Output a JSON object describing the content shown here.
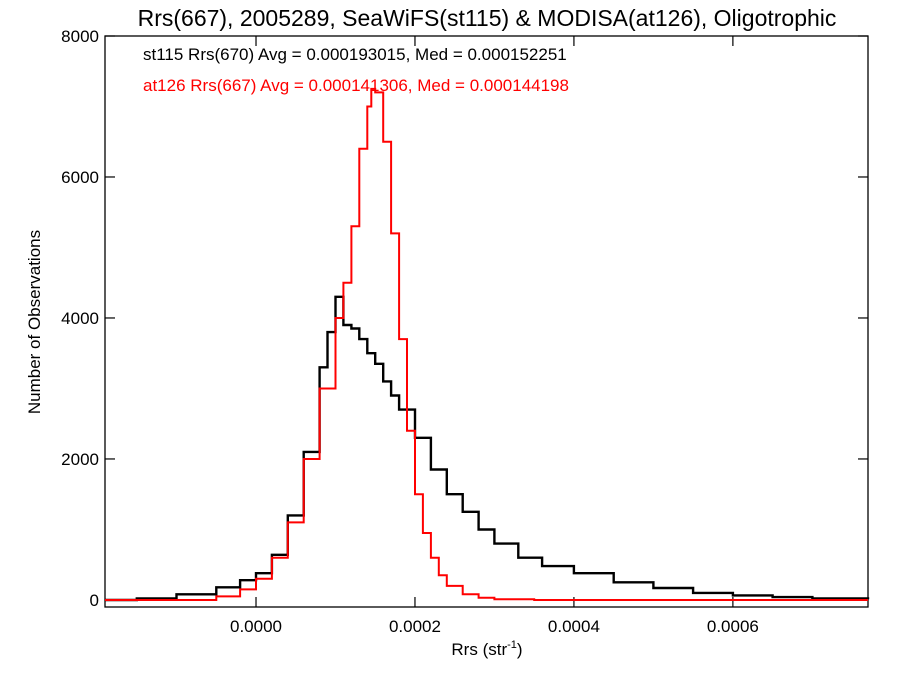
{
  "chart_data": {
    "type": "line",
    "title": "Rrs(667), 2005289, SeaWiFS(st115) & MODISA(at126), Oligotrophic",
    "xlabel": "Rrs (str",
    "xlabel_sup": "-1",
    "xlabel_close": ")",
    "ylabel": "Number of Observations",
    "xlim": [
      -0.00019,
      0.00077
    ],
    "ylim": [
      -100,
      8000
    ],
    "x_ticks": [
      0.0,
      0.0002,
      0.0004,
      0.0006
    ],
    "x_tick_labels": [
      "0.0000",
      "0.0002",
      "0.0004",
      "0.0006"
    ],
    "y_ticks": [
      0,
      2000,
      4000,
      6000,
      8000
    ],
    "y_tick_labels": [
      "0",
      "2000",
      "4000",
      "6000",
      "8000"
    ],
    "grid": false,
    "legend_position": "top-left",
    "annotations": [
      {
        "text": "st115 Rrs(670) Avg = 0.000193015, Med = 0.000152251",
        "color": "#000000"
      },
      {
        "text": "at126 Rrs(667) Avg = 0.000141306, Med = 0.000144198",
        "color": "#ff0000"
      }
    ],
    "series": [
      {
        "color": "#000000",
        "x": [
          -0.00019,
          -0.00015,
          -0.0001,
          -5e-05,
          -2e-05,
          0.0,
          2e-05,
          4e-05,
          6e-05,
          8e-05,
          9e-05,
          0.0001,
          0.00011,
          0.00012,
          0.00013,
          0.00014,
          0.00015,
          0.00016,
          0.00017,
          0.00018,
          0.0002,
          0.00022,
          0.00024,
          0.00026,
          0.00028,
          0.0003,
          0.00033,
          0.00036,
          0.0004,
          0.00045,
          0.0005,
          0.00055,
          0.0006,
          0.00065,
          0.0007,
          0.00077
        ],
        "values": [
          0,
          20,
          80,
          180,
          280,
          380,
          640,
          1200,
          2100,
          3300,
          3800,
          4300,
          3900,
          3850,
          3700,
          3500,
          3350,
          3100,
          2900,
          2700,
          2300,
          1850,
          1500,
          1250,
          1000,
          800,
          600,
          480,
          380,
          250,
          170,
          100,
          65,
          40,
          20,
          10
        ]
      },
      {
        "color": "#ff0000",
        "x": [
          -0.00019,
          -8e-05,
          -5e-05,
          -2e-05,
          0.0,
          2e-05,
          4e-05,
          6e-05,
          8e-05,
          0.0001,
          0.00011,
          0.00012,
          0.00013,
          0.00014,
          0.000145,
          0.00015,
          0.00016,
          0.00017,
          0.00018,
          0.00019,
          0.0002,
          0.00021,
          0.00022,
          0.00023,
          0.00024,
          0.00026,
          0.00028,
          0.0003,
          0.00035,
          0.0004,
          0.00077
        ],
        "values": [
          0,
          0,
          50,
          150,
          300,
          600,
          1100,
          2000,
          3000,
          4000,
          4500,
          5300,
          6400,
          7000,
          7250,
          7200,
          6500,
          5200,
          3700,
          2400,
          1500,
          950,
          600,
          350,
          200,
          80,
          30,
          10,
          0,
          0,
          0
        ]
      }
    ]
  }
}
